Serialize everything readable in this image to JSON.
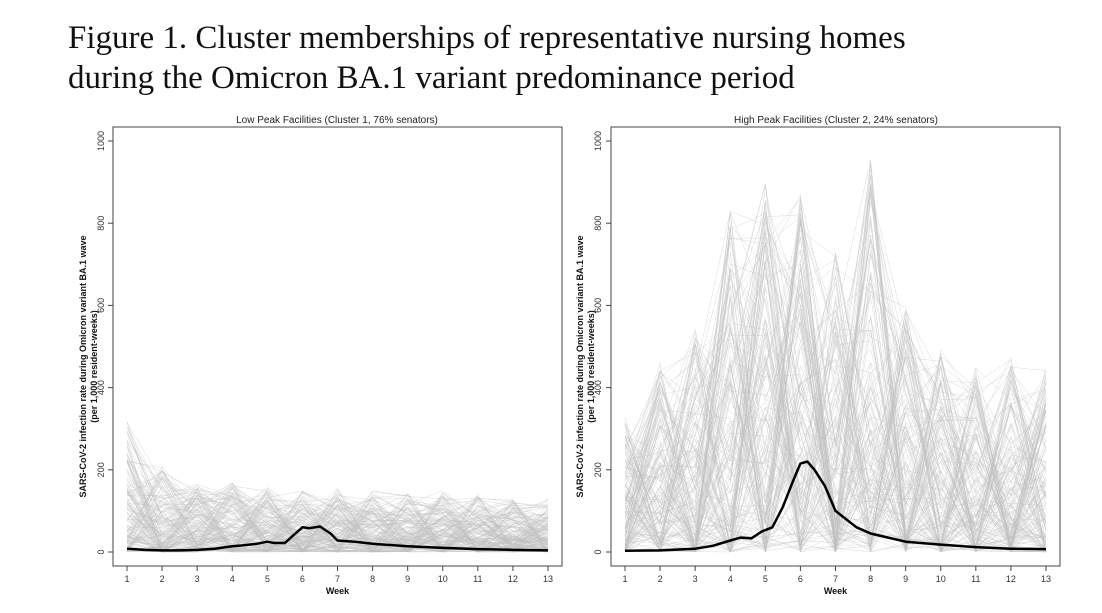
{
  "figure": {
    "title_line1": "Figure 1. Cluster memberships of representative nursing homes",
    "title_line2": "during the Omicron BA.1 variant predominance period"
  },
  "colors": {
    "mean_line": "#000000",
    "individual_lines": "#bdbdbd",
    "axis": "#444444"
  },
  "chart_data": [
    {
      "type": "line",
      "title": "Low Peak Facilities (Cluster 1, 76% senators)",
      "xlabel": "Week",
      "ylabel_line1": "SARS-CoV-2 infection rate during Omicron variant BA.1 wave",
      "ylabel_line2": "(per 1,000 resident-weeks)",
      "x": [
        1,
        2,
        3,
        4,
        5,
        6,
        7,
        8,
        9,
        10,
        11,
        12,
        13
      ],
      "xlim": [
        1,
        13
      ],
      "ylim": [
        0,
        1000
      ],
      "yticks": [
        0,
        200,
        400,
        600,
        800,
        1000
      ],
      "mean_series": {
        "x": [
          1,
          1.5,
          2,
          2.5,
          3,
          3.5,
          4,
          4.3,
          4.7,
          5,
          5.2,
          5.5,
          5.8,
          6,
          6.2,
          6.5,
          6.8,
          7,
          7.5,
          8,
          9,
          10,
          11,
          12,
          13
        ],
        "y": [
          8,
          5,
          4,
          4,
          5,
          8,
          14,
          16,
          20,
          25,
          22,
          22,
          45,
          60,
          58,
          62,
          45,
          28,
          25,
          20,
          14,
          10,
          7,
          5,
          4
        ]
      },
      "individual_lines_max_y": [
        320,
        210,
        165,
        170,
        160,
        150,
        155,
        150,
        145,
        150,
        140,
        135,
        130
      ]
    },
    {
      "type": "line",
      "title": "High Peak Facilities (Cluster 2, 24% senators)",
      "xlabel": "Week",
      "ylabel_line1": "SARS-CoV-2 infection rate during Omicron variant BA.1 wave",
      "ylabel_line2": "(per 1,000 resident-weeks)",
      "x": [
        1,
        2,
        3,
        4,
        5,
        6,
        7,
        8,
        9,
        10,
        11,
        12,
        13
      ],
      "xlim": [
        1,
        13
      ],
      "ylim": [
        0,
        1000
      ],
      "yticks": [
        0,
        200,
        400,
        600,
        800,
        1000
      ],
      "mean_series": {
        "x": [
          1,
          2,
          3,
          3.5,
          4,
          4.3,
          4.6,
          4.9,
          5.2,
          5.5,
          5.8,
          6,
          6.2,
          6.4,
          6.7,
          7,
          7.3,
          7.6,
          8,
          8.5,
          9,
          10,
          11,
          12,
          13
        ],
        "y": [
          3,
          4,
          8,
          15,
          28,
          35,
          33,
          50,
          60,
          110,
          175,
          215,
          220,
          200,
          160,
          100,
          80,
          60,
          45,
          35,
          25,
          18,
          12,
          8,
          7
        ]
      },
      "individual_lines_max_y": [
        330,
        460,
        550,
        830,
        900,
        870,
        750,
        960,
        600,
        500,
        450,
        480,
        450
      ]
    }
  ]
}
